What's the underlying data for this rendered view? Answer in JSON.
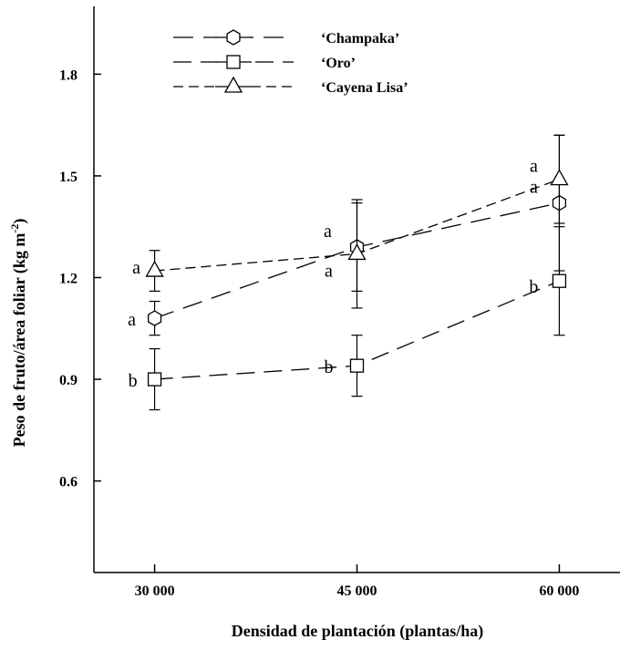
{
  "chart_data": {
    "type": "line",
    "xlabel": "Densidad de plantación (plantas/ha)",
    "ylabel": "Peso de fruto/área foliar (kg m",
    "ylabel_sup": "-2",
    "ylabel_tail": ")",
    "categories": [
      "30 000",
      "45 000",
      "60 000"
    ],
    "x": [
      30000,
      45000,
      60000
    ],
    "xlim": [
      25500,
      64500
    ],
    "ylim": [
      0.33,
      2.0
    ],
    "yticks": [
      0.6,
      0.9,
      1.2,
      1.5,
      1.8
    ],
    "ytick_labels": [
      "0.6",
      "0.9",
      "1.2",
      "1.5",
      "1.8"
    ],
    "grid": false,
    "legend_position": "top-center",
    "series": [
      {
        "name": "‘Champaka’",
        "marker": "hexagon",
        "values": [
          1.08,
          1.29,
          1.42
        ],
        "errors": [
          0.05,
          0.13,
          0.2
        ],
        "labels": [
          "a",
          "a",
          "a"
        ]
      },
      {
        "name": "‘Oro’",
        "marker": "square",
        "values": [
          0.9,
          0.94,
          1.19
        ],
        "errors": [
          0.09,
          0.09,
          0.16
        ],
        "labels": [
          "b",
          "b",
          "b"
        ]
      },
      {
        "name": "‘Cayena Lisa’",
        "marker": "triangle",
        "values": [
          1.22,
          1.27,
          1.49
        ],
        "errors": [
          0.06,
          0.16,
          0.13
        ],
        "labels": [
          "a",
          "a",
          "a"
        ]
      }
    ]
  }
}
